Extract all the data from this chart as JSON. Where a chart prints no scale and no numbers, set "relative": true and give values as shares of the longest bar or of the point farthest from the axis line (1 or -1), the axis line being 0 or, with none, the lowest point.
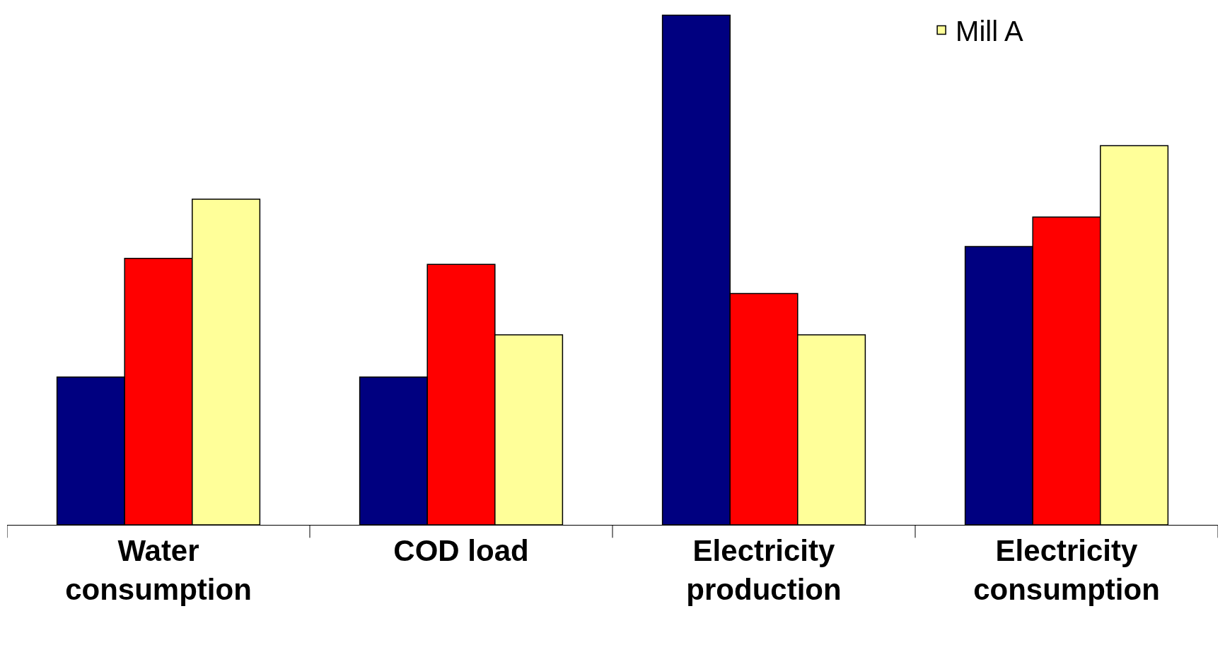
{
  "chart_data": {
    "type": "bar",
    "relative": true,
    "categories": [
      "Water consumption",
      "COD load",
      "Electricity production",
      "Electricity consumption"
    ],
    "series": [
      {
        "color": "#000080",
        "values": [
          0.29,
          0.29,
          1,
          0.546
        ]
      },
      {
        "color": "#ff0000",
        "values": [
          0.523,
          0.511,
          0.454,
          0.604
        ]
      },
      {
        "name": "Mill A",
        "color": "#ffff99",
        "values": [
          0.639,
          0.373,
          0.373,
          0.744
        ]
      }
    ],
    "legend": "top right"
  }
}
